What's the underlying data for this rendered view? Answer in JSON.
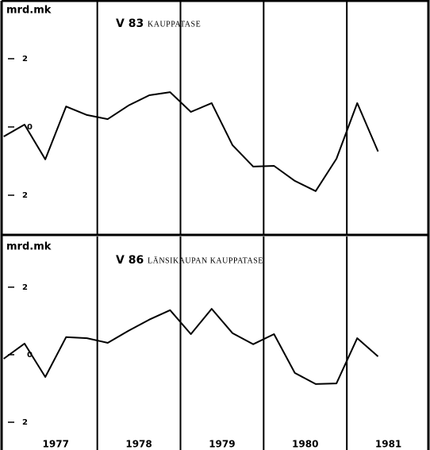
{
  "chart_data": [
    {
      "type": "line",
      "title_code": "V 83",
      "title": "KAUPPATASE",
      "ylabel": "mrd.mk",
      "x": [
        1976.875,
        1977.125,
        1977.375,
        1977.625,
        1977.875,
        1978.125,
        1978.375,
        1978.625,
        1978.875,
        1979.125,
        1979.375,
        1979.625,
        1979.875,
        1980.125,
        1980.375,
        1980.625,
        1980.875,
        1981.125,
        1981.375
      ],
      "series": [
        {
          "color": "#000000",
          "values": [
            -0.28,
            0.07,
            -0.95,
            0.6,
            0.35,
            0.23,
            0.63,
            0.93,
            1.02,
            0.44,
            0.7,
            -0.53,
            -1.16,
            -1.14,
            -1.58,
            -1.88,
            -0.93,
            0.7,
            -0.72
          ]
        }
      ],
      "xlim": [
        1976.83,
        1982.0
      ],
      "ylim": [
        -3.14,
        3.72
      ],
      "yticks": [
        2,
        0,
        {
          "value": -2,
          "label": "2"
        }
      ],
      "xgrid": [
        1978,
        1979,
        1980,
        1981
      ]
    },
    {
      "type": "line",
      "title_code": "V 86",
      "title": "LÄNSIKAUPAN KAUPPATASE",
      "ylabel": "mrd.mk",
      "x": [
        1976.875,
        1977.125,
        1977.375,
        1977.625,
        1977.875,
        1978.125,
        1978.375,
        1978.625,
        1978.875,
        1979.125,
        1979.375,
        1979.625,
        1979.875,
        1980.125,
        1980.375,
        1980.625,
        1980.875,
        1981.125,
        1981.375
      ],
      "series": [
        {
          "color": "#000000",
          "values": [
            -0.12,
            0.33,
            -0.66,
            0.52,
            0.49,
            0.35,
            0.71,
            1.04,
            1.32,
            0.61,
            1.36,
            0.64,
            0.31,
            0.61,
            -0.54,
            -0.87,
            -0.85,
            0.49,
            -0.05
          ]
        }
      ],
      "xlim": [
        1976.83,
        1982.0
      ],
      "ylim": [
        -2.54,
        3.5
      ],
      "yticks": [
        2,
        0,
        {
          "value": -2,
          "label": "2"
        }
      ],
      "xticks": [
        {
          "value": 1977.5,
          "label": "1977"
        },
        {
          "value": 1978.5,
          "label": "1978"
        },
        {
          "value": 1979.5,
          "label": "1979"
        },
        {
          "value": 1980.5,
          "label": "1980"
        },
        {
          "value": 1981.5,
          "label": "1981"
        }
      ],
      "xgrid": [
        1978,
        1979,
        1980,
        1981
      ]
    }
  ]
}
